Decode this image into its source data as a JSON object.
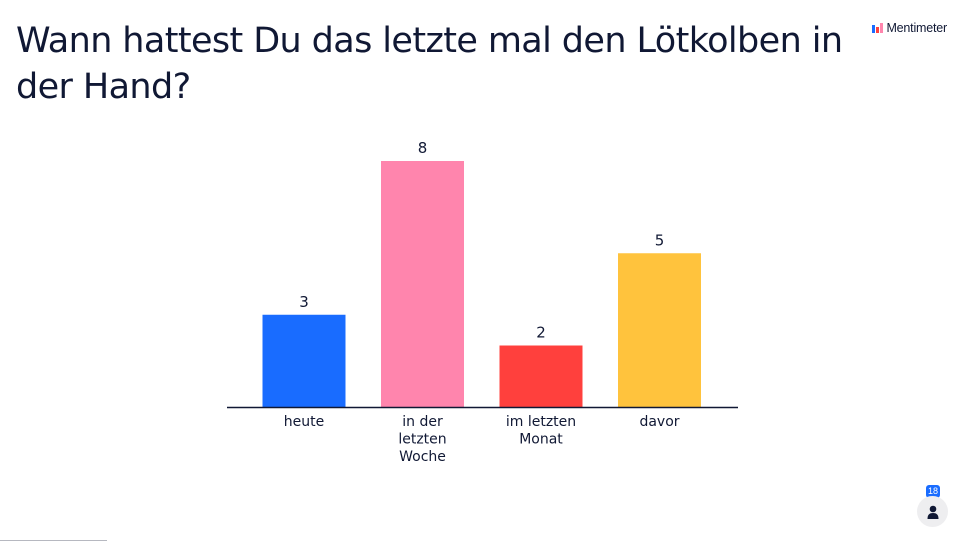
{
  "slide": {
    "title": "Wann hattest Du das letzte mal den Lötkolben in der Hand?"
  },
  "brand": {
    "name": "Mentimeter",
    "icon": "mentimeter-logo-icon"
  },
  "participants": {
    "count": "18",
    "icon": "person-icon"
  },
  "chart_data": {
    "type": "bar",
    "categories": [
      [
        "heute"
      ],
      [
        "in der",
        "letzten",
        "Woche"
      ],
      [
        "im letzten",
        "Monat"
      ],
      [
        "davor"
      ]
    ],
    "values": [
      3,
      8,
      2,
      5
    ],
    "colors": [
      "#196cff",
      "#ff85ad",
      "#ff403d",
      "#ffc33d"
    ],
    "title": "",
    "xlabel": "",
    "ylabel": "",
    "ylim": [
      0,
      8
    ],
    "grid": false,
    "legend": "none"
  }
}
